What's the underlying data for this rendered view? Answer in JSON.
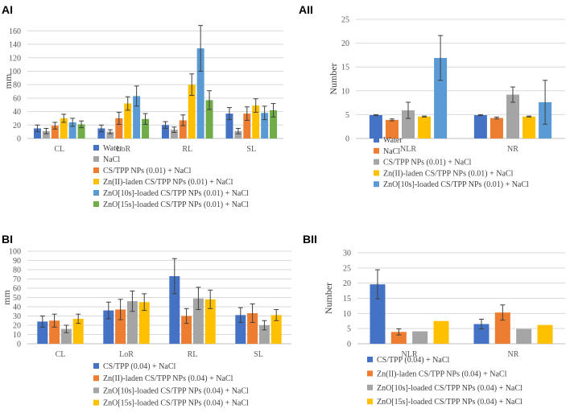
{
  "colors": {
    "blue": "#4472C4",
    "orange": "#ED7D31",
    "gray": "#A5A5A5",
    "yellow": "#FFC000",
    "lightblue": "#5B9BD5",
    "green": "#70AD47"
  },
  "chart_data": [
    {
      "id": "AI",
      "panel_label": "AI",
      "type": "bar",
      "ylabel": "mm",
      "ylim": [
        0,
        170
      ],
      "yticks": [
        "0",
        "20",
        "40",
        "60",
        "80",
        "100",
        "120",
        "140",
        "160"
      ],
      "ytick_values": [
        0,
        20,
        40,
        60,
        80,
        100,
        120,
        140,
        160
      ],
      "categories": [
        "CL",
        "LoR",
        "RL",
        "SL"
      ],
      "series": [
        {
          "name": "Water",
          "color": "#4472C4",
          "values": [
            15,
            15,
            20,
            37
          ],
          "errors": [
            5,
            5,
            5,
            9
          ]
        },
        {
          "name": "NaCl",
          "color": "#A5A5A5",
          "values": [
            11,
            10,
            13,
            11
          ],
          "errors": [
            4,
            3,
            4,
            4
          ]
        },
        {
          "name": "CS/TPP NPs (0.01) + NaCl",
          "color": "#ED7D31",
          "values": [
            19,
            30,
            27,
            37
          ],
          "errors": [
            5,
            9,
            8,
            10
          ]
        },
        {
          "name": "Zn(II)-laden CS/TPP NPs  (0.01) + NaCl",
          "color": "#FFC000",
          "values": [
            30,
            52,
            80,
            49
          ],
          "errors": [
            6,
            10,
            16,
            10
          ]
        },
        {
          "name": "ZnO[10s]-loaded CS/TPP NPs  (0.01) + NaCl",
          "color": "#5B9BD5",
          "values": [
            24,
            63,
            134,
            38
          ],
          "errors": [
            6,
            15,
            34,
            10
          ]
        },
        {
          "name": "ZnO[15s]-loaded CS/TPP NPs  (0.01) + NaCl",
          "color": "#70AD47",
          "values": [
            21,
            29,
            57,
            42
          ],
          "errors": [
            5,
            8,
            14,
            10
          ]
        }
      ]
    },
    {
      "id": "AII",
      "panel_label": "AII",
      "type": "bar",
      "ylabel": "Number",
      "ylim": [
        0,
        25
      ],
      "yticks": [
        "0",
        "5",
        "10",
        "15",
        "20",
        "25"
      ],
      "ytick_values": [
        0,
        5,
        10,
        15,
        20,
        25
      ],
      "categories": [
        "NLR",
        "NR"
      ],
      "series": [
        {
          "name": "Water",
          "color": "#4472C4",
          "values": [
            4.9,
            4.9
          ],
          "errors": [
            0.1,
            0.1
          ]
        },
        {
          "name": "NaCl",
          "color": "#ED7D31",
          "values": [
            3.9,
            4.3
          ],
          "errors": [
            0.2,
            0.2
          ]
        },
        {
          "name": "CS/TPP NPs (0.01) + NaCl",
          "color": "#A5A5A5",
          "values": [
            5.9,
            9.2
          ],
          "errors": [
            1.7,
            1.6
          ]
        },
        {
          "name": "Zn(II)-laden CS/TPP NPs  (0.01) + NaCl",
          "color": "#FFC000",
          "values": [
            4.6,
            4.6
          ],
          "errors": [
            0.1,
            0.1
          ]
        },
        {
          "name": "ZnO[10s]-loaded CS/TPP NPs  (0.01) + NaCl",
          "color": "#5B9BD5",
          "values": [
            16.9,
            7.6
          ],
          "errors": [
            4.7,
            4.6
          ]
        }
      ]
    },
    {
      "id": "BI",
      "panel_label": "BI",
      "type": "bar",
      "ylabel": "mm",
      "ylim": [
        0,
        100
      ],
      "yticks": [
        "0",
        "10",
        "20",
        "30",
        "40",
        "50",
        "60",
        "70",
        "80",
        "90",
        "100"
      ],
      "ytick_values": [
        0,
        10,
        20,
        30,
        40,
        50,
        60,
        70,
        80,
        90,
        100
      ],
      "categories": [
        "CL",
        "LoR",
        "RL",
        "SL"
      ],
      "series": [
        {
          "name": "CS/TPP  (0.04) + NaCl",
          "color": "#4472C4",
          "values": [
            24,
            36,
            73,
            31
          ],
          "errors": [
            6,
            9,
            19,
            8
          ]
        },
        {
          "name": "Zn(II)-laden CS/TPP NPs (0.04) + NaCl",
          "color": "#ED7D31",
          "values": [
            25,
            37,
            30,
            33
          ],
          "errors": [
            7,
            11,
            8,
            10
          ]
        },
        {
          "name": "ZnO[10s]-loaded CS/TPP NPs (0.04) + NaCl",
          "color": "#A5A5A5",
          "values": [
            16,
            46,
            49,
            20
          ],
          "errors": [
            4,
            11,
            12,
            5
          ]
        },
        {
          "name": "ZnO[15s]-loaded CS/TPP NPs (0.04) + NaCl",
          "color": "#FFC000",
          "values": [
            27,
            45,
            48,
            31
          ],
          "errors": [
            5,
            9,
            10,
            6
          ]
        }
      ]
    },
    {
      "id": "BII",
      "panel_label": "BII",
      "type": "bar",
      "ylabel": "Number",
      "ylim": [
        0,
        30
      ],
      "yticks": [
        "0",
        "5",
        "10",
        "15",
        "20",
        "25",
        "30"
      ],
      "ytick_values": [
        0,
        5,
        10,
        15,
        20,
        25,
        30
      ],
      "categories": [
        "NLR",
        "NR"
      ],
      "series": [
        {
          "name": "CS/TPP  (0.04) + NaCl",
          "color": "#4472C4",
          "values": [
            19.6,
            6.5
          ],
          "errors": [
            4.8,
            1.6
          ]
        },
        {
          "name": "Zn(II)-laden CS/TPP NPs (0.04) + NaCl",
          "color": "#ED7D31",
          "values": [
            3.9,
            10.3
          ],
          "errors": [
            1.0,
            2.5
          ]
        },
        {
          "name": "ZnO[10s]-loaded CS/TPP NPs (0.04) + NaCl",
          "color": "#A5A5A5",
          "values": [
            4.1,
            4.9
          ],
          "errors": [
            0,
            0
          ]
        },
        {
          "name": "ZnO[15s]-loaded CS/TPP NPs (0.04) + NaCl",
          "color": "#FFC000",
          "values": [
            7.5,
            6.2
          ],
          "errors": [
            0,
            0
          ]
        }
      ]
    }
  ]
}
